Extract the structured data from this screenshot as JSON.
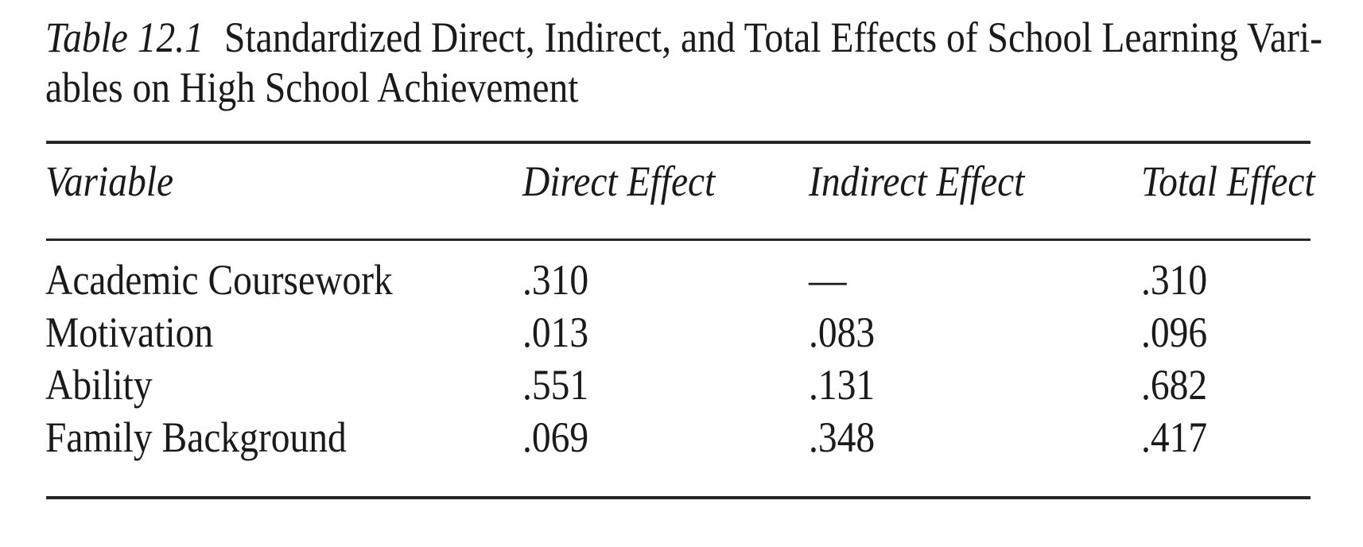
{
  "page": {
    "background": "#ffffff",
    "text_color": "#1a1a1a",
    "rule_color": "#262626"
  },
  "title": {
    "label": "Table 12.1",
    "line1": "Standardized Direct, Indirect, and Total Effects of School Learning Vari-",
    "line2": "ables on High School Achievement"
  },
  "table": {
    "columns": [
      "Variable",
      "Direct Effect",
      "Indirect Effect",
      "Total Effect"
    ],
    "rows": [
      {
        "variable": "Academic Coursework",
        "direct": ".310",
        "indirect": "—",
        "total": ".310"
      },
      {
        "variable": "Motivation",
        "direct": ".013",
        "indirect": ".083",
        "total": ".096"
      },
      {
        "variable": "Ability",
        "direct": ".551",
        "indirect": ".131",
        "total": ".682"
      },
      {
        "variable": "Family Background",
        "direct": ".069",
        "indirect": ".348",
        "total": ".417"
      }
    ]
  },
  "chart_data": {
    "type": "table",
    "title": "Table 12.1 Standardized Direct, Indirect, and Total Effects of School Learning Variables on High School Achievement",
    "categories": [
      "Academic Coursework",
      "Motivation",
      "Ability",
      "Family Background"
    ],
    "series": [
      {
        "name": "Direct Effect",
        "values": [
          0.31,
          0.013,
          0.551,
          0.069
        ]
      },
      {
        "name": "Indirect Effect",
        "values": [
          null,
          0.083,
          0.131,
          0.348
        ]
      },
      {
        "name": "Total Effect",
        "values": [
          0.31,
          0.096,
          0.682,
          0.417
        ]
      }
    ]
  }
}
